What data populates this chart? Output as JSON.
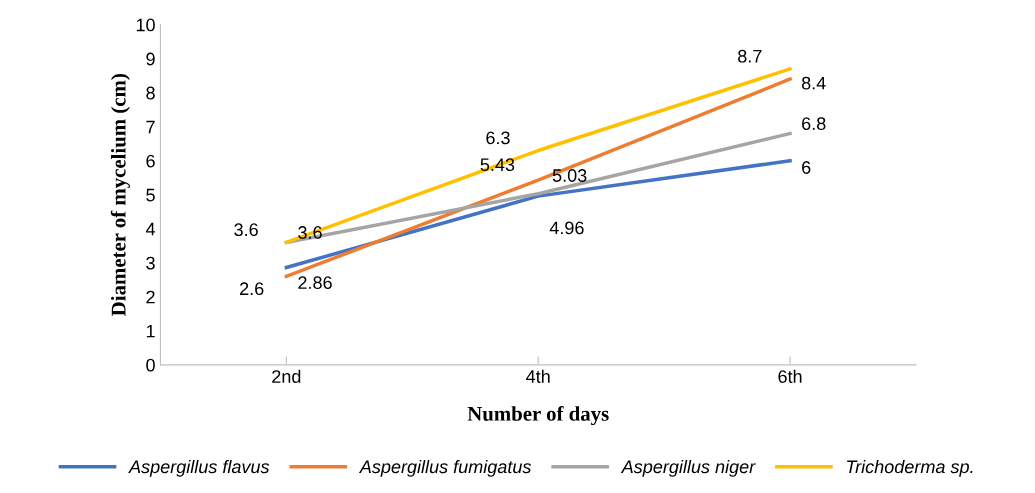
{
  "chart_data": {
    "type": "line",
    "xlabel": "Number of days",
    "ylabel": "Diameter of mycelium (cm)",
    "categories": [
      "2nd",
      "4th",
      "6th"
    ],
    "series": [
      {
        "name": "Aspergillus flavus",
        "color": "#4472c4",
        "values": [
          2.86,
          4.96,
          6
        ]
      },
      {
        "name": "Aspergillus fumigatus",
        "color": "#ed7d31",
        "values": [
          2.6,
          5.43,
          8.4
        ]
      },
      {
        "name": "Aspergillus niger",
        "color": "#a5a5a5",
        "values": [
          3.6,
          5.03,
          6.8
        ]
      },
      {
        "name": "Trichoderma sp.",
        "color": "#ffc000",
        "values": [
          3.6,
          6.3,
          8.7
        ]
      }
    ],
    "ylim": [
      0,
      10
    ],
    "yticks": [
      0,
      1,
      2,
      3,
      4,
      5,
      6,
      7,
      8,
      9,
      10
    ],
    "data_labels": true,
    "grid": false,
    "legend": "bottom",
    "marker": "none",
    "line_style": "solid"
  }
}
